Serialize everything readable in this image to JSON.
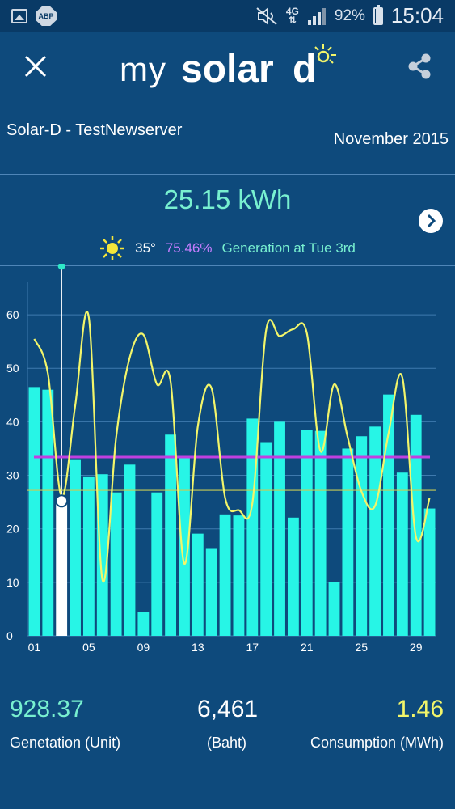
{
  "status_bar": {
    "signal_label": "4G",
    "battery": "92%",
    "battery_level": 0.92,
    "time": "15:04",
    "icons": [
      "image-icon",
      "adblock-icon",
      "mute-icon",
      "signal-icon",
      "battery-icon"
    ]
  },
  "appbar": {
    "logo_my": "my",
    "logo_solar": "solar",
    "logo_d": "d",
    "icons": [
      "close-icon",
      "share-icon"
    ]
  },
  "header": {
    "site_name": "Solar-D - TestNewserver",
    "period": "November 2015"
  },
  "summary": {
    "total_energy": "25.15 kWh",
    "temperature": "35°",
    "percentage": "75.46%",
    "generation_at": "Generation at Tue 3rd"
  },
  "colors": {
    "background": "#0e4a7c",
    "bars": "#27f5e6",
    "selected_bar": "#ffffff",
    "line": "#f2f56a",
    "average_line": "#c040e0",
    "reference_line": "#c8cc55",
    "energy_text": "#78f0d0",
    "percentage_text": "#c77dff",
    "consumption_text": "#f2f56a"
  },
  "chart_data": {
    "type": "bar",
    "title": "",
    "ylim": [
      0,
      65
    ],
    "y_ticks": [
      "0",
      "10",
      "20",
      "30",
      "40",
      "50",
      "60"
    ],
    "x_tick_labels": [
      "01",
      "05",
      "09",
      "13",
      "17",
      "21",
      "25",
      "29"
    ],
    "x_tick_days": [
      1,
      5,
      9,
      13,
      17,
      21,
      25,
      29
    ],
    "grid": true,
    "selected_day": 3,
    "days": [
      1,
      2,
      3,
      4,
      5,
      6,
      7,
      8,
      9,
      10,
      11,
      12,
      13,
      14,
      15,
      16,
      17,
      18,
      19,
      20,
      21,
      22,
      23,
      24,
      25,
      26,
      27,
      28,
      29,
      30
    ],
    "series": [
      {
        "type": "bar",
        "values": [
          46.5,
          46,
          25.2,
          33,
          29.8,
          30.2,
          26.8,
          32,
          4.4,
          26.8,
          37.6,
          33.2,
          19.1,
          16.4,
          22.7,
          22.5,
          40.6,
          36.2,
          40,
          22.1,
          38.5,
          38.3,
          10.1,
          35,
          37.3,
          39.1,
          45.1,
          30.5,
          41.3,
          23.8
        ]
      },
      {
        "type": "line",
        "values": [
          55.5,
          49,
          26,
          43,
          59.5,
          10.5,
          37,
          52,
          56.3,
          47,
          47.5,
          13.5,
          39.2,
          46.3,
          25.8,
          23.5,
          24.8,
          57,
          56,
          57.3,
          56.5,
          34.5,
          47,
          37,
          27,
          24.3,
          38,
          48.3,
          18.5,
          25.8
        ]
      }
    ],
    "average_line": 33.4,
    "reference_line": 27.2
  },
  "stats": {
    "generation_value": "928.37",
    "generation_label": "Genetation (Unit)",
    "baht_value": "6,461",
    "baht_label": "(Baht)",
    "consumption_value": "1.46",
    "consumption_label": "Consumption (MWh)"
  }
}
